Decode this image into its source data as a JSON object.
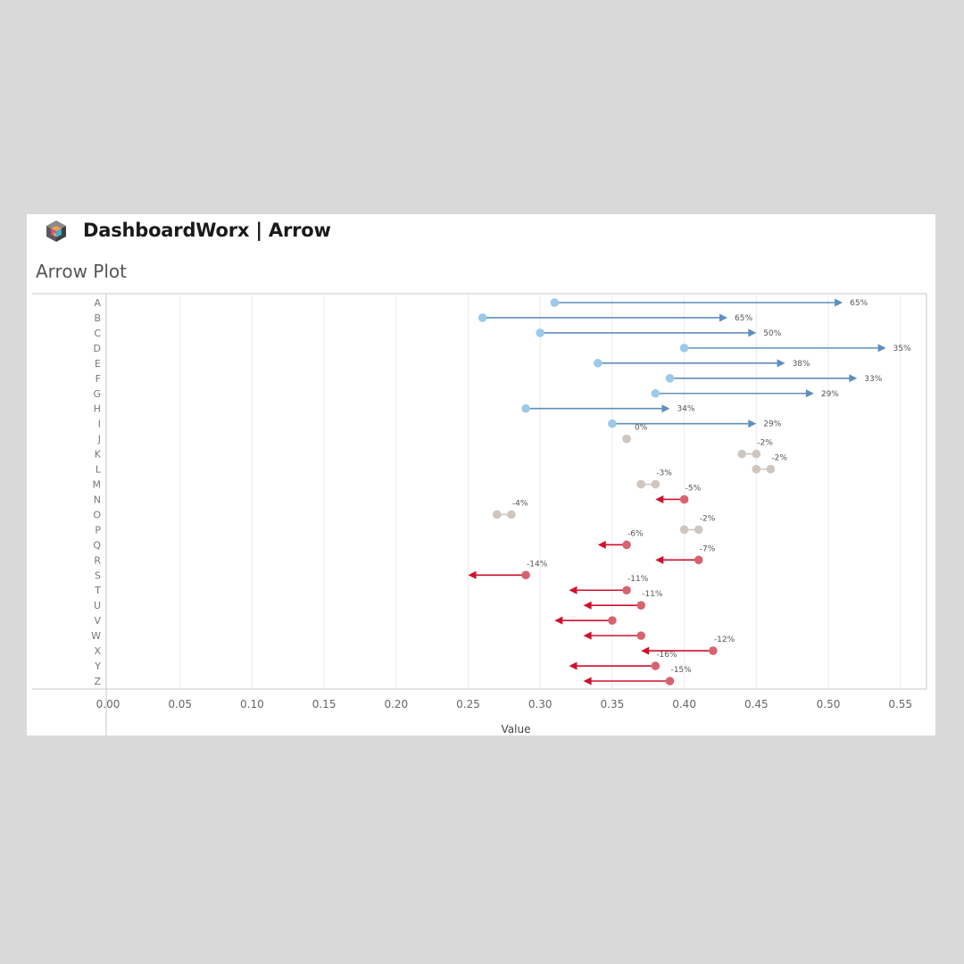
{
  "header": {
    "title": "DashboardWorx | Arrow",
    "logo_icon": "cube-logo-icon"
  },
  "colors": {
    "positive_dot": "#9ccae8",
    "positive_arrow": "#5f8fbd",
    "negative_dot": "#d6646f",
    "negative_arrow": "#d0102c",
    "neutral_dot": "#cfc6bf",
    "grid": "#ebebeb",
    "axis": "#c8c8c8",
    "label": "#777777"
  },
  "chart_data": {
    "type": "arrow",
    "title": "Arrow Plot",
    "xlabel": "Value",
    "ylabel": "",
    "xlim": [
      0.0,
      0.57
    ],
    "xticks": [
      "0.00",
      "0.05",
      "0.10",
      "0.15",
      "0.20",
      "0.25",
      "0.30",
      "0.35",
      "0.40",
      "0.45",
      "0.50",
      "0.55"
    ],
    "grid": true,
    "rows": [
      {
        "category": "A",
        "start": 0.31,
        "end": 0.51,
        "label": "65%",
        "direction": "up"
      },
      {
        "category": "B",
        "start": 0.26,
        "end": 0.43,
        "label": "65%",
        "direction": "up"
      },
      {
        "category": "C",
        "start": 0.3,
        "end": 0.45,
        "label": "50%",
        "direction": "up"
      },
      {
        "category": "D",
        "start": 0.4,
        "end": 0.54,
        "label": "35%",
        "direction": "up"
      },
      {
        "category": "E",
        "start": 0.34,
        "end": 0.47,
        "label": "38%",
        "direction": "up"
      },
      {
        "category": "F",
        "start": 0.39,
        "end": 0.52,
        "label": "33%",
        "direction": "up"
      },
      {
        "category": "G",
        "start": 0.38,
        "end": 0.49,
        "label": "29%",
        "direction": "up"
      },
      {
        "category": "H",
        "start": 0.29,
        "end": 0.39,
        "label": "34%",
        "direction": "up"
      },
      {
        "category": "I",
        "start": 0.35,
        "end": 0.45,
        "label": "29%",
        "direction": "up"
      },
      {
        "category": "J",
        "start": 0.36,
        "end": 0.36,
        "label": "0%",
        "direction": "flat"
      },
      {
        "category": "K",
        "start": 0.45,
        "end": 0.44,
        "label": "-2%",
        "direction": "flat"
      },
      {
        "category": "L",
        "start": 0.46,
        "end": 0.45,
        "label": "-2%",
        "direction": "flat"
      },
      {
        "category": "M",
        "start": 0.38,
        "end": 0.37,
        "label": "-3%",
        "direction": "flat"
      },
      {
        "category": "N",
        "start": 0.4,
        "end": 0.38,
        "label": "-5%",
        "direction": "down"
      },
      {
        "category": "O",
        "start": 0.28,
        "end": 0.27,
        "label": "-4%",
        "direction": "flat"
      },
      {
        "category": "P",
        "start": 0.41,
        "end": 0.4,
        "label": "-2%",
        "direction": "flat"
      },
      {
        "category": "Q",
        "start": 0.36,
        "end": 0.34,
        "label": "-6%",
        "direction": "down"
      },
      {
        "category": "R",
        "start": 0.41,
        "end": 0.38,
        "label": "-7%",
        "direction": "down"
      },
      {
        "category": "S",
        "start": 0.29,
        "end": 0.25,
        "label": "-14%",
        "direction": "down"
      },
      {
        "category": "T",
        "start": 0.36,
        "end": 0.32,
        "label": "-11%",
        "direction": "down"
      },
      {
        "category": "U",
        "start": 0.37,
        "end": 0.33,
        "label": "-11%",
        "direction": "down"
      },
      {
        "category": "V",
        "start": 0.35,
        "end": 0.31,
        "label": "",
        "direction": "down"
      },
      {
        "category": "W",
        "start": 0.37,
        "end": 0.33,
        "label": "",
        "direction": "down"
      },
      {
        "category": "X",
        "start": 0.42,
        "end": 0.37,
        "label": "-12%",
        "direction": "down"
      },
      {
        "category": "Y",
        "start": 0.38,
        "end": 0.32,
        "label": "-16%",
        "direction": "down"
      },
      {
        "category": "Z",
        "start": 0.39,
        "end": 0.33,
        "label": "-15%",
        "direction": "down"
      }
    ]
  }
}
